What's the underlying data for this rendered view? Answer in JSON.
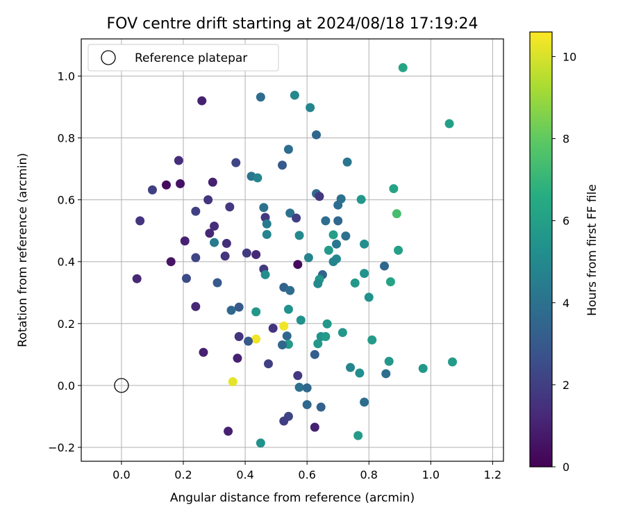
{
  "chart_data": {
    "type": "scatter",
    "title": "FOV centre drift starting at 2024/08/18 17:19:24",
    "xlabel": "Angular distance from reference (arcmin)",
    "ylabel": "Rotation from reference (arcmin)",
    "xlim": [
      -0.13,
      1.235
    ],
    "ylim": [
      -0.245,
      1.12
    ],
    "xticks": [
      0.0,
      0.2,
      0.4,
      0.6,
      0.8,
      1.0,
      1.2
    ],
    "yticks": [
      -0.2,
      0.0,
      0.2,
      0.4,
      0.6,
      0.8,
      1.0
    ],
    "xtick_labels": [
      "0.0",
      "0.2",
      "0.4",
      "0.6",
      "0.8",
      "1.0",
      "1.2"
    ],
    "ytick_labels": [
      "−0.2",
      "0.0",
      "0.2",
      "0.4",
      "0.6",
      "0.8",
      "1.0"
    ],
    "grid": true,
    "legend": {
      "label": "Reference platepar",
      "position": "upper-left"
    },
    "reference": {
      "x": 0.0,
      "y": 0.0
    },
    "colorbar": {
      "label": "Hours from first FF file",
      "colormap": "viridis",
      "range": [
        0,
        10.6
      ],
      "ticks": [
        0,
        2,
        4,
        6,
        8,
        10
      ],
      "tick_labels": [
        "0",
        "2",
        "4",
        "6",
        "8",
        "10"
      ]
    },
    "points": [
      {
        "x": 0.26,
        "y": 0.92,
        "c": 1.0
      },
      {
        "x": 0.45,
        "y": 0.932,
        "c": 3.8
      },
      {
        "x": 0.56,
        "y": 0.938,
        "c": 5.0
      },
      {
        "x": 0.61,
        "y": 0.898,
        "c": 4.8
      },
      {
        "x": 0.63,
        "y": 0.81,
        "c": 3.6
      },
      {
        "x": 0.91,
        "y": 1.027,
        "c": 6.2
      },
      {
        "x": 1.06,
        "y": 0.846,
        "c": 6.0
      },
      {
        "x": 0.54,
        "y": 0.763,
        "c": 3.8
      },
      {
        "x": 0.73,
        "y": 0.722,
        "c": 4.2
      },
      {
        "x": 0.37,
        "y": 0.72,
        "c": 2.2
      },
      {
        "x": 0.52,
        "y": 0.712,
        "c": 3.0
      },
      {
        "x": 0.185,
        "y": 0.727,
        "c": 1.4
      },
      {
        "x": 0.42,
        "y": 0.676,
        "c": 4.2
      },
      {
        "x": 0.44,
        "y": 0.671,
        "c": 4.8
      },
      {
        "x": 0.295,
        "y": 0.657,
        "c": 1.0
      },
      {
        "x": 0.19,
        "y": 0.652,
        "c": 0.5
      },
      {
        "x": 0.145,
        "y": 0.648,
        "c": 0.3
      },
      {
        "x": 0.1,
        "y": 0.632,
        "c": 2.0
      },
      {
        "x": 0.63,
        "y": 0.62,
        "c": 3.6
      },
      {
        "x": 0.64,
        "y": 0.611,
        "c": 1.8
      },
      {
        "x": 0.88,
        "y": 0.636,
        "c": 6.2
      },
      {
        "x": 0.28,
        "y": 0.6,
        "c": 1.6
      },
      {
        "x": 0.71,
        "y": 0.603,
        "c": 4.0
      },
      {
        "x": 0.775,
        "y": 0.601,
        "c": 5.6
      },
      {
        "x": 0.7,
        "y": 0.583,
        "c": 3.8
      },
      {
        "x": 0.35,
        "y": 0.577,
        "c": 1.8
      },
      {
        "x": 0.46,
        "y": 0.575,
        "c": 4.0
      },
      {
        "x": 0.24,
        "y": 0.563,
        "c": 2.0
      },
      {
        "x": 0.545,
        "y": 0.557,
        "c": 4.0
      },
      {
        "x": 0.89,
        "y": 0.555,
        "c": 7.4
      },
      {
        "x": 0.565,
        "y": 0.541,
        "c": 2.0
      },
      {
        "x": 0.465,
        "y": 0.543,
        "c": 1.8
      },
      {
        "x": 0.06,
        "y": 0.532,
        "c": 1.6
      },
      {
        "x": 0.66,
        "y": 0.532,
        "c": 3.8
      },
      {
        "x": 0.7,
        "y": 0.532,
        "c": 3.6
      },
      {
        "x": 0.47,
        "y": 0.522,
        "c": 4.4
      },
      {
        "x": 0.3,
        "y": 0.515,
        "c": 1.4
      },
      {
        "x": 0.285,
        "y": 0.492,
        "c": 1.2
      },
      {
        "x": 0.47,
        "y": 0.488,
        "c": 4.8
      },
      {
        "x": 0.575,
        "y": 0.485,
        "c": 5.0
      },
      {
        "x": 0.685,
        "y": 0.487,
        "c": 6.0
      },
      {
        "x": 0.725,
        "y": 0.483,
        "c": 4.0
      },
      {
        "x": 0.205,
        "y": 0.467,
        "c": 1.0
      },
      {
        "x": 0.3,
        "y": 0.462,
        "c": 4.4
      },
      {
        "x": 0.34,
        "y": 0.459,
        "c": 1.4
      },
      {
        "x": 0.695,
        "y": 0.457,
        "c": 4.2
      },
      {
        "x": 0.785,
        "y": 0.457,
        "c": 5.2
      },
      {
        "x": 0.895,
        "y": 0.437,
        "c": 6.0
      },
      {
        "x": 0.67,
        "y": 0.437,
        "c": 5.8
      },
      {
        "x": 0.405,
        "y": 0.428,
        "c": 1.8
      },
      {
        "x": 0.435,
        "y": 0.423,
        "c": 1.2
      },
      {
        "x": 0.335,
        "y": 0.418,
        "c": 1.6
      },
      {
        "x": 0.24,
        "y": 0.413,
        "c": 2.2
      },
      {
        "x": 0.605,
        "y": 0.413,
        "c": 4.8
      },
      {
        "x": 0.695,
        "y": 0.409,
        "c": 5.0
      },
      {
        "x": 0.685,
        "y": 0.4,
        "c": 4.8
      },
      {
        "x": 0.16,
        "y": 0.4,
        "c": 0.6
      },
      {
        "x": 0.57,
        "y": 0.391,
        "c": 0.3
      },
      {
        "x": 0.85,
        "y": 0.386,
        "c": 3.6
      },
      {
        "x": 0.46,
        "y": 0.376,
        "c": 1.8
      },
      {
        "x": 0.785,
        "y": 0.362,
        "c": 5.4
      },
      {
        "x": 0.465,
        "y": 0.358,
        "c": 5.2
      },
      {
        "x": 0.65,
        "y": 0.358,
        "c": 3.4
      },
      {
        "x": 0.21,
        "y": 0.346,
        "c": 2.4
      },
      {
        "x": 0.05,
        "y": 0.345,
        "c": 1.2
      },
      {
        "x": 0.64,
        "y": 0.343,
        "c": 5.6
      },
      {
        "x": 0.87,
        "y": 0.335,
        "c": 6.2
      },
      {
        "x": 0.31,
        "y": 0.332,
        "c": 3.0
      },
      {
        "x": 0.755,
        "y": 0.331,
        "c": 5.6
      },
      {
        "x": 0.635,
        "y": 0.329,
        "c": 5.0
      },
      {
        "x": 0.525,
        "y": 0.317,
        "c": 3.4
      },
      {
        "x": 0.545,
        "y": 0.307,
        "c": 3.8
      },
      {
        "x": 0.8,
        "y": 0.285,
        "c": 5.4
      },
      {
        "x": 0.24,
        "y": 0.255,
        "c": 1.2
      },
      {
        "x": 0.38,
        "y": 0.253,
        "c": 3.0
      },
      {
        "x": 0.355,
        "y": 0.243,
        "c": 3.6
      },
      {
        "x": 0.54,
        "y": 0.246,
        "c": 5.4
      },
      {
        "x": 0.435,
        "y": 0.238,
        "c": 5.6
      },
      {
        "x": 0.58,
        "y": 0.211,
        "c": 5.4
      },
      {
        "x": 0.665,
        "y": 0.199,
        "c": 5.6
      },
      {
        "x": 0.525,
        "y": 0.192,
        "c": 10.4
      },
      {
        "x": 0.49,
        "y": 0.185,
        "c": 1.6
      },
      {
        "x": 0.715,
        "y": 0.171,
        "c": 5.6
      },
      {
        "x": 0.535,
        "y": 0.16,
        "c": 3.6
      },
      {
        "x": 0.645,
        "y": 0.158,
        "c": 5.4
      },
      {
        "x": 0.66,
        "y": 0.158,
        "c": 5.8
      },
      {
        "x": 0.38,
        "y": 0.158,
        "c": 1.6
      },
      {
        "x": 0.435,
        "y": 0.15,
        "c": 10.4
      },
      {
        "x": 0.81,
        "y": 0.147,
        "c": 5.8
      },
      {
        "x": 0.41,
        "y": 0.143,
        "c": 3.0
      },
      {
        "x": 0.635,
        "y": 0.135,
        "c": 5.6
      },
      {
        "x": 0.54,
        "y": 0.133,
        "c": 5.8
      },
      {
        "x": 0.52,
        "y": 0.131,
        "c": 3.6
      },
      {
        "x": 0.265,
        "y": 0.107,
        "c": 1.0
      },
      {
        "x": 0.625,
        "y": 0.1,
        "c": 3.2
      },
      {
        "x": 0.375,
        "y": 0.088,
        "c": 1.0
      },
      {
        "x": 0.865,
        "y": 0.078,
        "c": 5.6
      },
      {
        "x": 1.07,
        "y": 0.076,
        "c": 5.8
      },
      {
        "x": 0.475,
        "y": 0.07,
        "c": 2.0
      },
      {
        "x": 0.74,
        "y": 0.058,
        "c": 4.8
      },
      {
        "x": 0.975,
        "y": 0.055,
        "c": 5.6
      },
      {
        "x": 0.77,
        "y": 0.04,
        "c": 5.2
      },
      {
        "x": 0.855,
        "y": 0.038,
        "c": 3.8
      },
      {
        "x": 0.57,
        "y": 0.032,
        "c": 1.8
      },
      {
        "x": 0.36,
        "y": 0.012,
        "c": 10.2
      },
      {
        "x": 0.575,
        "y": -0.006,
        "c": 4.0
      },
      {
        "x": 0.6,
        "y": -0.008,
        "c": 3.6
      },
      {
        "x": 0.785,
        "y": -0.054,
        "c": 3.8
      },
      {
        "x": 0.6,
        "y": -0.062,
        "c": 3.6
      },
      {
        "x": 0.645,
        "y": -0.07,
        "c": 3.4
      },
      {
        "x": 0.54,
        "y": -0.1,
        "c": 2.2
      },
      {
        "x": 0.525,
        "y": -0.115,
        "c": 2.0
      },
      {
        "x": 0.625,
        "y": -0.135,
        "c": 1.0
      },
      {
        "x": 0.345,
        "y": -0.148,
        "c": 1.0
      },
      {
        "x": 0.765,
        "y": -0.162,
        "c": 5.8
      },
      {
        "x": 0.45,
        "y": -0.186,
        "c": 5.4
      }
    ]
  }
}
